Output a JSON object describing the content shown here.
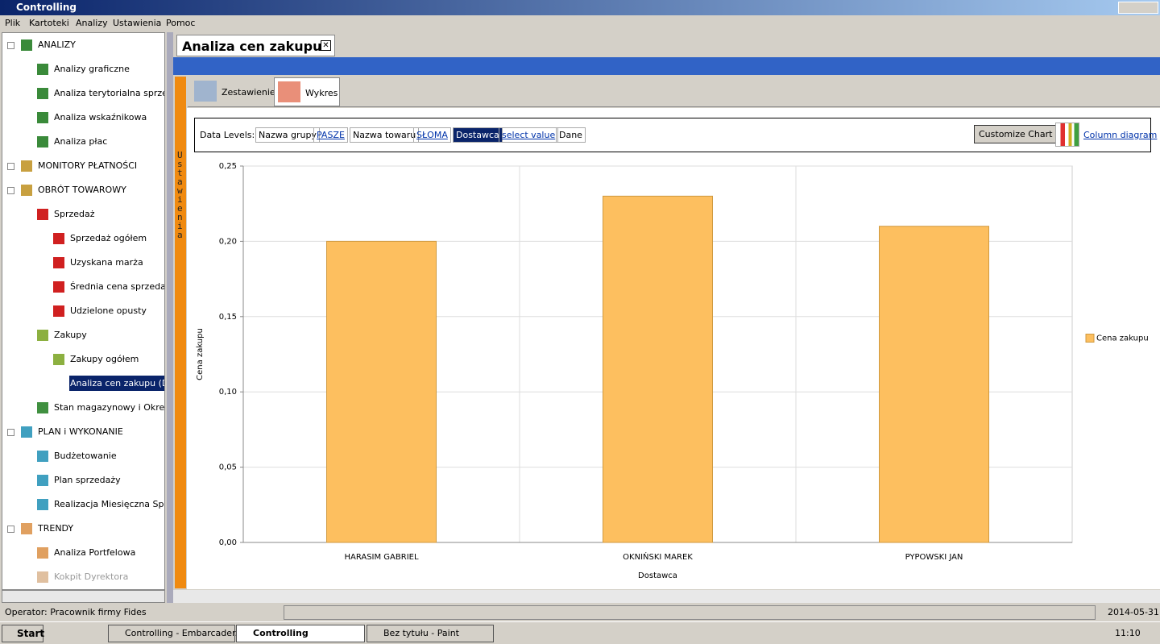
{
  "window": {
    "title": "Controlling"
  },
  "menu": [
    "Plik",
    "Kartoteki",
    "Analizy",
    "Ustawienia",
    "Pomoc"
  ],
  "tree": [
    "ANALIZY",
    "Analizy graficzne",
    "Analiza terytorialna sprzeaży",
    "Analiza wskaźnikowa",
    "Analiza płac",
    "MONITORY PŁATNOŚCI",
    "OBRÓT TOWAROWY",
    "Sprzedaż",
    "Sprzedaż ogółem",
    "Uzyskana marża",
    "Średnia cena sprzedaży",
    "Udzielone opusty",
    "Zakupy",
    "Zakupy ogółem",
    "Analiza cen zakupu (Dos",
    "Stan magazynowy i Okresy z",
    "PLAN i WYKONANIE",
    "Budżetowanie",
    "Plan sprzedaży",
    "Realizacja Miesięczna Sprzed",
    "TRENDY",
    "Analiza Portfelowa",
    "Kokpit Dyrektora"
  ],
  "tab": {
    "title": "Analiza cen zakupu",
    "side_label": "Ustawienia"
  },
  "subtabs": [
    "Zestawienie",
    "Wykres"
  ],
  "data_levels": {
    "label": "Data Levels:",
    "items": [
      "Nazwa grupy",
      "PASZE",
      "Nazwa towaru",
      "SŁOMA",
      "Dostawca",
      "select value",
      "Dane"
    ]
  },
  "toolbar": {
    "customize": "Customize Chart",
    "diagram": "Column diagram"
  },
  "chart_data": {
    "type": "bar",
    "x_label": "Dostawca",
    "y_label": "Cena zakupu",
    "categories": [
      "HARASIM GABRIEL",
      "OKNIŃSKI MAREK",
      "PYPOWSKI JAN"
    ],
    "series": [
      {
        "name": "Cena zakupu",
        "color": "#fdbf5f",
        "values": [
          0.2,
          0.23,
          0.21
        ]
      }
    ],
    "ylim": [
      0,
      0.25
    ],
    "yticks": [
      {
        "value": 0,
        "label": "0,00"
      },
      {
        "value": 0.05,
        "label": "0,05"
      },
      {
        "value": 0.1,
        "label": "0,10"
      },
      {
        "value": 0.15,
        "label": "0,15"
      },
      {
        "value": 0.2,
        "label": "0,20"
      },
      {
        "value": 0.25,
        "label": "0,25"
      }
    ],
    "grid": true,
    "legend": "right"
  },
  "status": {
    "operator": "Operator: Pracownik firmy Fides",
    "date": "2014-05-31"
  },
  "taskbar": {
    "start": "Start",
    "tasks": [
      "Controlling - Embarcader...",
      "Controlling",
      "Bez tytułu - Paint"
    ],
    "clock": "11:10"
  }
}
